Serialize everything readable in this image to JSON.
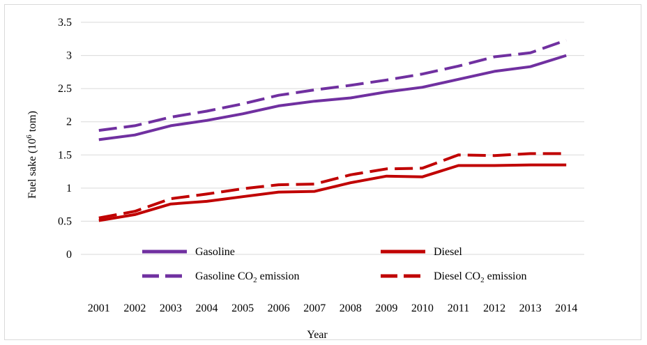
{
  "chart_data": {
    "type": "line",
    "xlabel": "Year",
    "ylabel": "Fuel sake (10",
    "ylabel_sup": "6",
    "ylabel_tail": " tom)",
    "ylim": [
      0,
      3.5
    ],
    "yticks": [
      "0",
      "0.5",
      "1",
      "1.5",
      "2",
      "2.5",
      "3",
      "3.5"
    ],
    "grid": "horizontal",
    "categories": [
      "2001",
      "2002",
      "2003",
      "2004",
      "2005",
      "2006",
      "2007",
      "2008",
      "2009",
      "2010",
      "2011",
      "2012",
      "2013",
      "2014"
    ],
    "series": [
      {
        "name": "Gasoline",
        "name_sub": "",
        "name_tail": "",
        "color": "#7030a0",
        "dash": false,
        "values": [
          1.73,
          1.8,
          1.94,
          2.02,
          2.12,
          2.24,
          2.31,
          2.36,
          2.45,
          2.52,
          2.64,
          2.76,
          2.83,
          3.0
        ]
      },
      {
        "name": "Diesel",
        "name_sub": "",
        "name_tail": "",
        "color": "#c00000",
        "dash": false,
        "values": [
          0.51,
          0.6,
          0.76,
          0.8,
          0.87,
          0.94,
          0.95,
          1.08,
          1.18,
          1.17,
          1.34,
          1.34,
          1.35,
          1.35
        ]
      },
      {
        "name": "Gasoline CO",
        "name_sub": "2",
        "name_tail": " emission",
        "color": "#7030a0",
        "dash": true,
        "values": [
          1.87,
          1.94,
          2.07,
          2.16,
          2.27,
          2.4,
          2.48,
          2.55,
          2.63,
          2.72,
          2.84,
          2.98,
          3.04,
          3.23
        ]
      },
      {
        "name": "Diesel CO",
        "name_sub": "2",
        "name_tail": " emission",
        "color": "#c00000",
        "dash": true,
        "values": [
          0.55,
          0.65,
          0.84,
          0.91,
          0.99,
          1.05,
          1.06,
          1.2,
          1.29,
          1.3,
          1.5,
          1.49,
          1.52,
          1.52
        ]
      }
    ]
  }
}
